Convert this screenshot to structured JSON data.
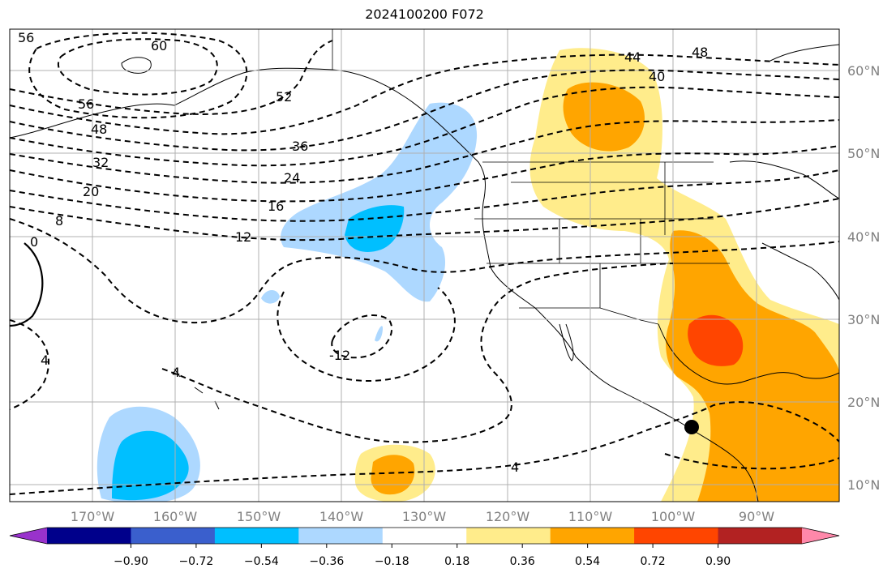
{
  "title": "2024100200 F072",
  "map": {
    "projection": "PlateCarree",
    "lon_range": [
      -180,
      -80
    ],
    "lat_range": [
      8,
      65
    ],
    "lon_ticks": [
      "170°W",
      "160°W",
      "150°W",
      "140°W",
      "130°W",
      "120°W",
      "110°W",
      "100°W",
      "90°W"
    ],
    "lat_ticks": [
      "60°N",
      "50°N",
      "40°N",
      "30°N",
      "20°N",
      "10°N"
    ],
    "gridlines": true,
    "contour_labels": [
      "56",
      "60",
      "56",
      "52",
      "48",
      "44",
      "48",
      "40",
      "36",
      "32",
      "24",
      "20",
      "16",
      "12",
      "8",
      "0",
      "4",
      "4",
      "-12",
      "4"
    ],
    "marker": {
      "label": "storm-center",
      "lon": -97.5,
      "lat": 17
    }
  },
  "colorbar": {
    "ticks": [
      "−0.90",
      "−0.72",
      "−0.54",
      "−0.36",
      "−0.18",
      "0.18",
      "0.36",
      "0.54",
      "0.72",
      "0.90"
    ],
    "colors": [
      "#9932cc",
      "#00008b",
      "#3a5fcd",
      "#00bfff",
      "#add8ff",
      "#ffffff",
      "#ffec8b",
      "#ffa500",
      "#ff4500",
      "#b22222",
      "#ff88aa"
    ]
  }
}
